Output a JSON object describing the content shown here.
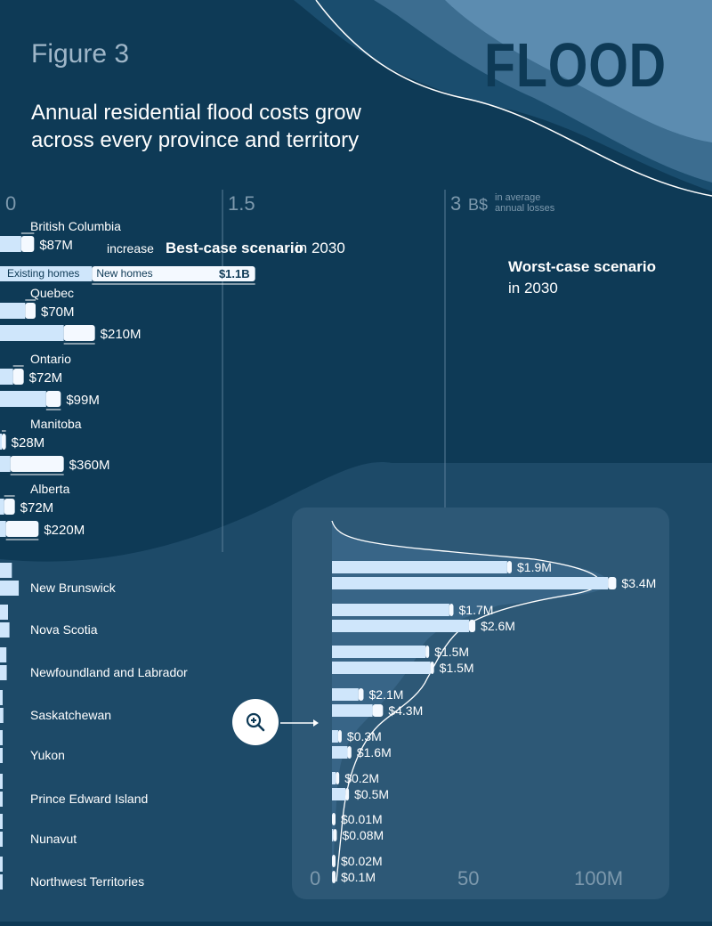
{
  "header": {
    "figure_label": "Figure 3",
    "brand": "FLOOD",
    "title_line1": "Annual residential flood costs grow",
    "title_line2": "across every province and territory"
  },
  "colors": {
    "background": "#0e3a56",
    "bar_existing": "#cfe6fb",
    "bar_new": "#f4f9ff",
    "text": "#ffffff",
    "gridline": "#5b7f98",
    "inset_panel": "#2d5876"
  },
  "chart_data": [
    {
      "type": "bar",
      "orientation": "horizontal",
      "unit": "B$",
      "axis": {
        "ticks": [
          "0",
          "1.5",
          "3"
        ],
        "unit_label": "B$",
        "unit_note": [
          "in average",
          "annual losses"
        ],
        "range": [
          0,
          3
        ]
      },
      "annotations": {
        "best_label": "Best-case scenario",
        "best_year": "in 2030",
        "best_increase_note": "increase",
        "worst_label": "Worst-case scenario",
        "worst_year": "in 2030",
        "existing_homes": "Existing homes",
        "new_homes": "New homes"
      },
      "categories": [
        "British Columbia",
        "Quebec",
        "Ontario",
        "Manitoba",
        "Alberta"
      ],
      "series": [
        {
          "name": "Best-case scenario",
          "increase_labels": [
            "$87M",
            "$70M",
            "$72M",
            "$28M",
            "$72M"
          ],
          "increase_values": [
            0.087,
            0.07,
            0.072,
            0.028,
            0.072
          ],
          "totals": [
            0.23,
            0.24,
            0.16,
            0.04,
            0.1
          ]
        },
        {
          "name": "Worst-case scenario",
          "increase_labels": [
            "$1.1B",
            "$210M",
            "$99M",
            "$360M",
            "$220M"
          ],
          "increase_values": [
            1.1,
            0.21,
            0.099,
            0.36,
            0.22
          ],
          "totals": [
            1.72,
            0.64,
            0.41,
            0.43,
            0.26
          ]
        }
      ]
    },
    {
      "type": "bar",
      "orientation": "horizontal",
      "axis": {
        "ticks": [
          "0",
          "50",
          "100M"
        ],
        "range": [
          0,
          100
        ]
      },
      "categories": [
        "New Brunswick",
        "Nova Scotia",
        "Newfoundland and Labrador",
        "Saskatchewan",
        "Yukon",
        "Prince Edward Island",
        "Nunavut",
        "Northwest Territories"
      ],
      "series": [
        {
          "name": "Best-case scenario",
          "increase_labels": [
            "$1.9M",
            "$1.7M",
            "$1.5M",
            "$2.1M",
            "$0.3M",
            "$0.2M",
            "$0.01M",
            "$0.02M"
          ],
          "increase_values": [
            1.9,
            1.7,
            1.5,
            2.1,
            0.3,
            0.2,
            0.01,
            0.02
          ],
          "totals": [
            74,
            50,
            40,
            13,
            4,
            3,
            1.2,
            0.8
          ]
        },
        {
          "name": "Worst-case scenario",
          "increase_labels": [
            "$3.4M",
            "$2.6M",
            "$1.5M",
            "$4.3M",
            "$1.6M",
            "$0.5M",
            "$0.08M",
            "$0.1M"
          ],
          "increase_values": [
            3.4,
            2.6,
            1.5,
            4.3,
            1.6,
            0.5,
            0.08,
            0.1
          ],
          "totals": [
            117,
            59,
            42,
            21,
            8,
            7,
            2,
            1.5
          ]
        }
      ]
    }
  ]
}
